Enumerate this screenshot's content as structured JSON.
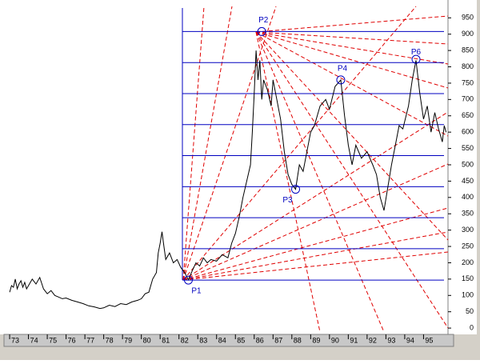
{
  "chart_data": {
    "type": "line",
    "color": "#000000",
    "x": [
      73.0,
      73.1,
      73.2,
      73.3,
      73.4,
      73.5,
      73.6,
      73.7,
      73.8,
      73.9,
      74.0,
      74.2,
      74.4,
      74.6,
      74.8,
      75.0,
      75.2,
      75.4,
      75.6,
      75.8,
      76.0,
      76.3,
      76.6,
      76.9,
      77.2,
      77.5,
      77.8,
      78.0,
      78.3,
      78.6,
      78.9,
      79.2,
      79.5,
      79.8,
      80.0,
      80.2,
      80.4,
      80.6,
      80.8,
      80.9,
      81.0,
      81.1,
      81.2,
      81.3,
      81.5,
      81.7,
      81.9,
      82.1,
      82.3,
      82.5,
      82.7,
      82.9,
      83.1,
      83.3,
      83.5,
      83.7,
      84.0,
      84.3,
      84.6,
      84.8,
      85.0,
      85.2,
      85.4,
      85.6,
      85.8,
      85.9,
      86.0,
      86.1,
      86.2,
      86.3,
      86.4,
      86.5,
      86.7,
      86.9,
      87.0,
      87.2,
      87.4,
      87.6,
      87.8,
      88.0,
      88.2,
      88.4,
      88.6,
      88.8,
      89.0,
      89.2,
      89.5,
      89.8,
      90.0,
      90.3,
      90.6,
      90.8,
      91.0,
      91.2,
      91.4,
      91.7,
      92.0,
      92.3,
      92.5,
      92.7,
      92.9,
      93.1,
      93.3,
      93.5,
      93.7,
      93.9,
      94.2,
      94.4,
      94.6,
      94.8,
      95.0,
      95.2,
      95.4,
      95.6,
      95.8,
      96.0,
      96.1,
      96.2
    ],
    "values": [
      110,
      130,
      125,
      150,
      120,
      135,
      145,
      125,
      140,
      120,
      130,
      150,
      135,
      155,
      120,
      105,
      115,
      100,
      95,
      90,
      92,
      85,
      80,
      75,
      68,
      65,
      60,
      62,
      70,
      66,
      75,
      72,
      80,
      85,
      90,
      105,
      110,
      150,
      170,
      230,
      260,
      295,
      250,
      210,
      230,
      200,
      210,
      185,
      170,
      148,
      175,
      200,
      190,
      215,
      200,
      210,
      205,
      225,
      215,
      260,
      290,
      340,
      400,
      450,
      500,
      600,
      720,
      850,
      760,
      820,
      700,
      760,
      730,
      680,
      760,
      700,
      640,
      540,
      470,
      440,
      425,
      500,
      480,
      540,
      600,
      620,
      680,
      700,
      670,
      740,
      760,
      650,
      560,
      500,
      560,
      520,
      540,
      500,
      470,
      400,
      360,
      430,
      500,
      560,
      620,
      610,
      680,
      760,
      820,
      720,
      640,
      680,
      600,
      660,
      610,
      570,
      620,
      600
    ],
    "xlim": [
      72.7,
      96.3
    ],
    "xticks": [
      73,
      74,
      75,
      76,
      77,
      78,
      79,
      80,
      81,
      82,
      83,
      84,
      85,
      86,
      87,
      88,
      89,
      90,
      91,
      92,
      93,
      94,
      95
    ],
    "ylim": [
      -12,
      985
    ],
    "yticks": [
      0,
      50,
      100,
      150,
      200,
      250,
      300,
      350,
      400,
      450,
      500,
      550,
      600,
      650,
      700,
      750,
      800,
      850,
      900,
      950
    ],
    "levels": [
      147,
      243,
      338,
      433,
      528,
      623,
      718,
      813,
      908
    ],
    "level_color": "#0000c0",
    "annotations": [
      {
        "label": "P1",
        "x": 82.5,
        "y": 147
      },
      {
        "label": "P2",
        "x": 86.4,
        "y": 908
      },
      {
        "label": "P3",
        "x": 88.2,
        "y": 425
      },
      {
        "label": "P4",
        "x": 90.6,
        "y": 760
      },
      {
        "label": "P6",
        "x": 94.6,
        "y": 823
      }
    ]
  }
}
